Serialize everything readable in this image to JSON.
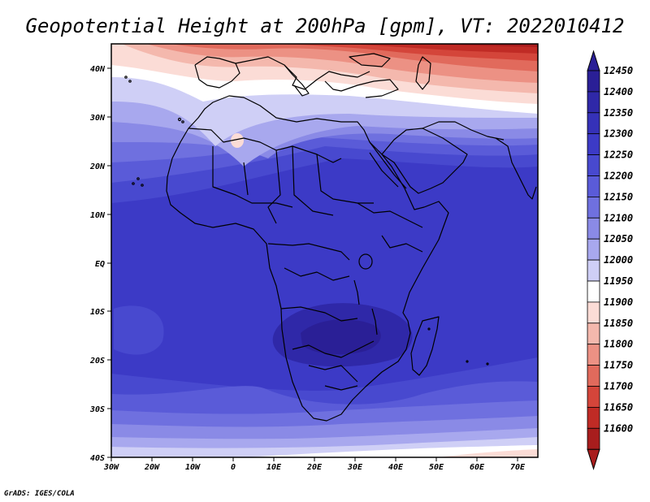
{
  "title": "Geopotential Height at 200hPa [gpm], VT: 2022010412",
  "credit": "GrADS: IGES/COLA",
  "lon_ticks": [
    "30W",
    "20W",
    "10W",
    "0",
    "10E",
    "20E",
    "30E",
    "40E",
    "50E",
    "60E",
    "70E"
  ],
  "lat_ticks": [
    "40N",
    "30N",
    "20N",
    "10N",
    "EQ",
    "10S",
    "20S",
    "30S",
    "40S"
  ],
  "colorbar": {
    "levels": [
      "12450",
      "12400",
      "12350",
      "12300",
      "12250",
      "12200",
      "12150",
      "12100",
      "12050",
      "12000",
      "11950",
      "11900",
      "11850",
      "11800",
      "11750",
      "11700",
      "11650",
      "11600"
    ],
    "colors": [
      "#2a1f96",
      "#2f28a8",
      "#3531b8",
      "#3c3ac6",
      "#4849cf",
      "#5a5bd8",
      "#6f70df",
      "#8a8ae6",
      "#a8a8ee",
      "#cfcff6",
      "#ffffff",
      "#fbdcd6",
      "#f4b8ad",
      "#ec9184",
      "#e16a5c",
      "#d4453a",
      "#c02b25",
      "#a81d1d"
    ]
  },
  "chart_data": {
    "type": "heatmap",
    "title": "Geopotential Height at 200hPa [gpm], VT: 2022010412",
    "variable": "Geopotential Height",
    "pressure_level": "200hPa",
    "units": "gpm",
    "valid_time": "2022010412",
    "lon_range": [
      "30W",
      "75E"
    ],
    "lat_range": [
      "40S",
      "45N"
    ],
    "contour_levels": [
      11600,
      11650,
      11700,
      11750,
      11800,
      11850,
      11900,
      11950,
      12000,
      12050,
      12100,
      12150,
      12200,
      12250,
      12300,
      12350,
      12400,
      12450
    ]
  }
}
